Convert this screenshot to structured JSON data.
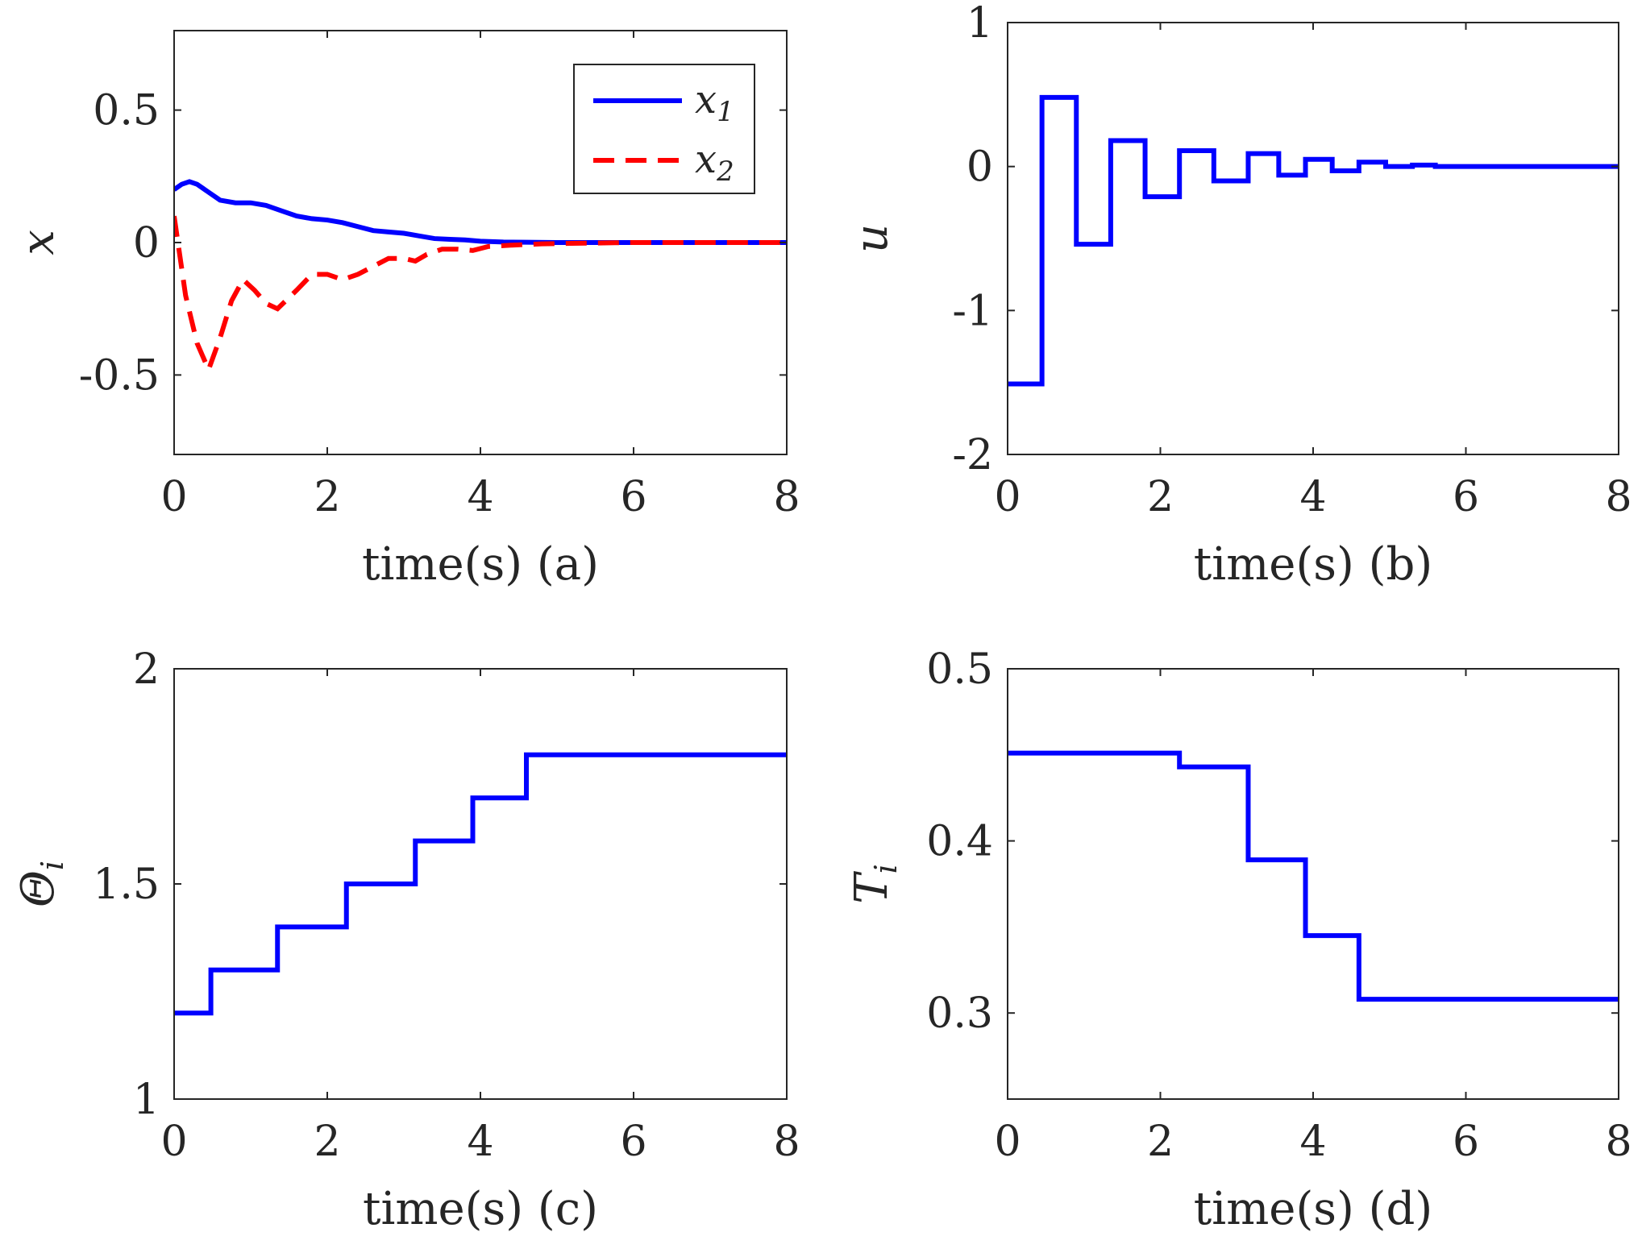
{
  "chart_data": [
    {
      "type": "line",
      "id": "a",
      "xlabel": "time(s) (a)",
      "ylabel": "x",
      "xlim": [
        0,
        8
      ],
      "ylim": [
        -0.8,
        0.8
      ],
      "xticks": [
        0,
        2,
        4,
        6,
        8
      ],
      "yticks": [
        -0.5,
        0,
        0.5
      ],
      "ytick_labels": [
        "-0.5",
        "0",
        "0.5"
      ],
      "legend": {
        "location": "top-right"
      },
      "series": [
        {
          "name": "x",
          "name_sub": "1",
          "color": "#0000ff",
          "style": "solid",
          "x": [
            0,
            0.1,
            0.2,
            0.3,
            0.45,
            0.6,
            0.8,
            1.0,
            1.2,
            1.4,
            1.6,
            1.8,
            2.0,
            2.2,
            2.4,
            2.6,
            2.8,
            3.0,
            3.2,
            3.4,
            3.6,
            3.8,
            4.0,
            4.3,
            4.6,
            5.0,
            5.5,
            6.0,
            7.0,
            8.0
          ],
          "y": [
            0.2,
            0.22,
            0.23,
            0.22,
            0.19,
            0.16,
            0.15,
            0.15,
            0.14,
            0.12,
            0.1,
            0.09,
            0.085,
            0.075,
            0.06,
            0.045,
            0.04,
            0.035,
            0.025,
            0.015,
            0.012,
            0.01,
            0.005,
            0.002,
            0.001,
            0.0,
            0.0,
            0.0,
            0.0,
            0.0
          ]
        },
        {
          "name": "x",
          "name_sub": "2",
          "color": "#ff0000",
          "style": "dashed",
          "x": [
            0,
            0.15,
            0.3,
            0.45,
            0.6,
            0.75,
            0.9,
            1.05,
            1.2,
            1.35,
            1.6,
            1.8,
            2.0,
            2.2,
            2.4,
            2.6,
            2.8,
            3.0,
            3.15,
            3.3,
            3.5,
            3.7,
            3.9,
            4.1,
            4.4,
            4.8,
            5.2,
            6.0,
            7.0,
            8.0
          ],
          "y": [
            0.1,
            -0.2,
            -0.38,
            -0.48,
            -0.36,
            -0.22,
            -0.14,
            -0.18,
            -0.23,
            -0.25,
            -0.18,
            -0.12,
            -0.12,
            -0.14,
            -0.12,
            -0.09,
            -0.06,
            -0.06,
            -0.07,
            -0.045,
            -0.025,
            -0.025,
            -0.03,
            -0.015,
            -0.01,
            -0.005,
            -0.003,
            0.0,
            0.0,
            0.0
          ]
        }
      ]
    },
    {
      "type": "line",
      "id": "b",
      "xlabel": "time(s) (b)",
      "ylabel": "u",
      "xlim": [
        0,
        8
      ],
      "ylim": [
        -2,
        1
      ],
      "xticks": [
        0,
        2,
        4,
        6,
        8
      ],
      "yticks": [
        -2,
        -1,
        0,
        1
      ],
      "ytick_labels": [
        "-2",
        "-1",
        "0",
        "1"
      ],
      "series": [
        {
          "name": "u",
          "color": "#0000ff",
          "style": "stairs",
          "x": [
            0,
            0.45,
            0.9,
            1.35,
            1.8,
            2.25,
            2.7,
            3.15,
            3.55,
            3.9,
            4.25,
            4.6,
            4.95,
            5.3,
            5.6,
            8.0
          ],
          "y": [
            -1.51,
            0.48,
            -0.54,
            0.18,
            -0.21,
            0.11,
            -0.1,
            0.09,
            -0.06,
            0.05,
            -0.03,
            0.03,
            0.0,
            0.01,
            0.0,
            0.0
          ]
        }
      ]
    },
    {
      "type": "line",
      "id": "c",
      "xlabel": "time(s) (c)",
      "ylabel": "Θ",
      "ylabel_sub": "i",
      "xlim": [
        0,
        8
      ],
      "ylim": [
        1,
        2
      ],
      "xticks": [
        0,
        2,
        4,
        6,
        8
      ],
      "yticks": [
        1,
        1.5,
        2
      ],
      "ytick_labels": [
        "1",
        "1.5",
        "2"
      ],
      "series": [
        {
          "name": "Θi",
          "color": "#0000ff",
          "style": "stairs",
          "x": [
            0,
            0.48,
            1.35,
            2.25,
            3.15,
            3.9,
            4.6,
            8.0
          ],
          "y": [
            1.2,
            1.3,
            1.4,
            1.5,
            1.6,
            1.7,
            1.8,
            1.8
          ]
        }
      ]
    },
    {
      "type": "line",
      "id": "d",
      "xlabel": "time(s) (d)",
      "ylabel": "T",
      "ylabel_sub": "i",
      "xlim": [
        0,
        8
      ],
      "ylim": [
        0.25,
        0.5
      ],
      "xticks": [
        0,
        2,
        4,
        6,
        8
      ],
      "yticks": [
        0.3,
        0.4,
        0.5
      ],
      "ytick_labels": [
        "0.3",
        "0.4",
        "0.5"
      ],
      "series": [
        {
          "name": "Ti",
          "color": "#0000ff",
          "style": "stairs",
          "x": [
            0,
            2.25,
            3.15,
            3.9,
            4.6,
            8.0
          ],
          "y": [
            0.451,
            0.443,
            0.389,
            0.345,
            0.308,
            0.308
          ]
        }
      ]
    }
  ]
}
